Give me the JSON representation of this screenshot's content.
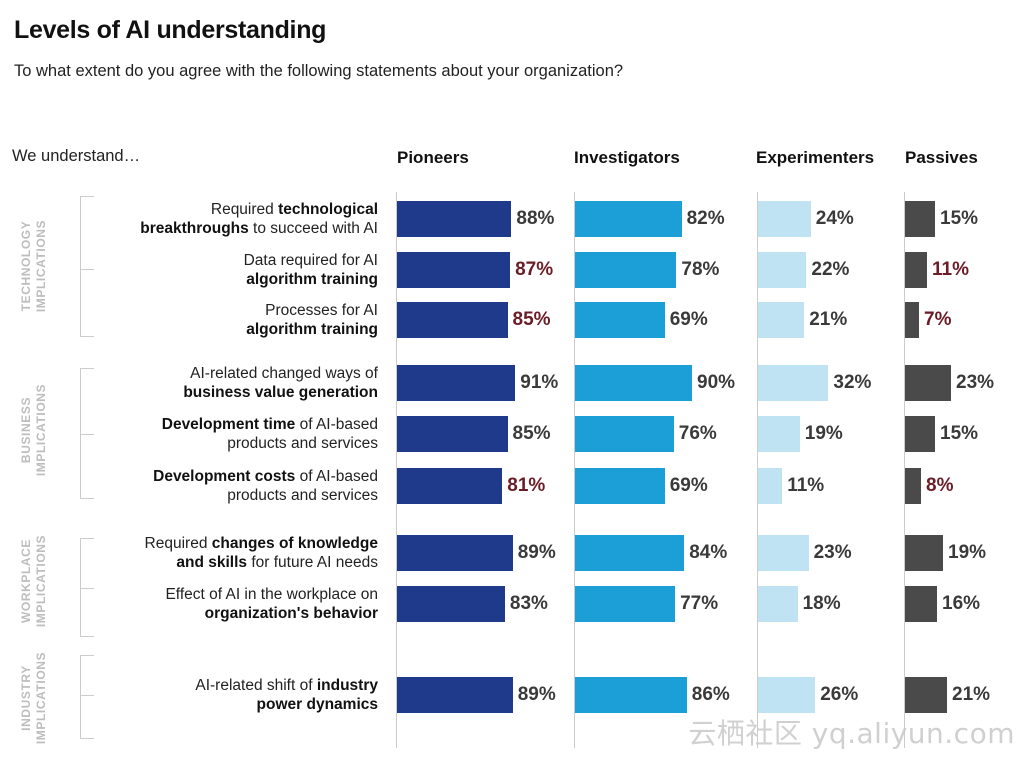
{
  "title": "Levels of AI understanding",
  "subtitle": "To what extent do you agree with the following statements about your organization?",
  "row_header": "We understand…",
  "watermark": "云栖社区 yq.aliyun.com",
  "colors": {
    "Pioneers": "#1f3a8a",
    "Investigators": "#1b9fd6",
    "Experimenters": "#bfe3f3",
    "Passives": "#4a4a4a",
    "highlight_value": "#6b1d27"
  },
  "groups": [
    {
      "label_line1": "TECHNOLOGY",
      "label_line2": "IMPLICATIONS"
    },
    {
      "label_line1": "BUSINESS",
      "label_line2": "IMPLICATIONS"
    },
    {
      "label_line1": "WORKPLACE",
      "label_line2": "IMPLICATIONS"
    },
    {
      "label_line1": "INDUSTRY",
      "label_line2": "IMPLICATIONS"
    }
  ],
  "chart_data": {
    "type": "bar",
    "orientation": "horizontal",
    "title": "Levels of AI understanding",
    "subtitle": "To what extent do you agree with the following statements about your organization?",
    "value_format": "percent",
    "series_names": [
      "Pioneers",
      "Investigators",
      "Experimenters",
      "Passives"
    ],
    "rows": [
      {
        "group": "TECHNOLOGY IMPLICATIONS",
        "label": [
          {
            "t": "Required ",
            "b": false
          },
          {
            "t": "technological",
            "b": true
          },
          {
            "t": "\n",
            "b": false
          },
          {
            "t": "breakthroughs",
            "b": true
          },
          {
            "t": " to succeed with AI",
            "b": false
          }
        ],
        "values": [
          88,
          82,
          24,
          15
        ],
        "labels": [
          "88%",
          "82%",
          "24%",
          "15%"
        ],
        "highlight": [
          false,
          false,
          false,
          false
        ]
      },
      {
        "group": "TECHNOLOGY IMPLICATIONS",
        "label": [
          {
            "t": "Data required for AI",
            "b": false
          },
          {
            "t": "\n",
            "b": false
          },
          {
            "t": "algorithm training",
            "b": true
          }
        ],
        "values": [
          87,
          78,
          22,
          11
        ],
        "labels": [
          "87%",
          "78%",
          "22%",
          "11%"
        ],
        "highlight": [
          true,
          false,
          false,
          true
        ]
      },
      {
        "group": "TECHNOLOGY IMPLICATIONS",
        "label": [
          {
            "t": "Processes for AI",
            "b": false
          },
          {
            "t": "\n",
            "b": false
          },
          {
            "t": "algorithm training",
            "b": true
          }
        ],
        "values": [
          85,
          69,
          21,
          7
        ],
        "labels": [
          "85%",
          "69%",
          "21%",
          "7%"
        ],
        "highlight": [
          true,
          false,
          false,
          true
        ]
      },
      {
        "group": "BUSINESS IMPLICATIONS",
        "label": [
          {
            "t": "AI-related changed ways of",
            "b": false
          },
          {
            "t": "\n",
            "b": false
          },
          {
            "t": "business value generation",
            "b": true
          }
        ],
        "values": [
          91,
          90,
          32,
          23
        ],
        "labels": [
          "91%",
          "90%",
          "32%",
          "23%"
        ],
        "highlight": [
          false,
          false,
          false,
          false
        ]
      },
      {
        "group": "BUSINESS IMPLICATIONS",
        "label": [
          {
            "t": "Development time",
            "b": true
          },
          {
            "t": " of AI-based",
            "b": false
          },
          {
            "t": "\n",
            "b": false
          },
          {
            "t": "products and services",
            "b": false
          }
        ],
        "values": [
          85,
          76,
          19,
          15
        ],
        "labels": [
          "85%",
          "76%",
          "19%",
          "15%"
        ],
        "highlight": [
          false,
          false,
          false,
          false
        ]
      },
      {
        "group": "BUSINESS IMPLICATIONS",
        "label": [
          {
            "t": "Development costs",
            "b": true
          },
          {
            "t": " of AI-based",
            "b": false
          },
          {
            "t": "\n",
            "b": false
          },
          {
            "t": "products and services",
            "b": false
          }
        ],
        "values": [
          81,
          69,
          11,
          8
        ],
        "labels": [
          "81%",
          "69%",
          "11%",
          "8%"
        ],
        "highlight": [
          true,
          false,
          false,
          true
        ]
      },
      {
        "group": "WORKPLACE IMPLICATIONS",
        "label": [
          {
            "t": "Required ",
            "b": false
          },
          {
            "t": "changes of knowledge",
            "b": true
          },
          {
            "t": "\n",
            "b": false
          },
          {
            "t": "and skills",
            "b": true
          },
          {
            "t": " for future AI needs",
            "b": false
          }
        ],
        "values": [
          89,
          84,
          23,
          19
        ],
        "labels": [
          "89%",
          "84%",
          "23%",
          "19%"
        ],
        "highlight": [
          false,
          false,
          false,
          false
        ]
      },
      {
        "group": "WORKPLACE IMPLICATIONS",
        "label": [
          {
            "t": "Effect of AI in the workplace on",
            "b": false
          },
          {
            "t": "\n",
            "b": false
          },
          {
            "t": "organization's behavior",
            "b": true
          }
        ],
        "values": [
          83,
          77,
          18,
          16
        ],
        "labels": [
          "83%",
          "77%",
          "18%",
          "16%"
        ],
        "highlight": [
          false,
          false,
          false,
          false
        ]
      },
      {
        "group": "INDUSTRY IMPLICATIONS",
        "label": [
          {
            "t": "AI-related shift of ",
            "b": false
          },
          {
            "t": "industry",
            "b": true
          },
          {
            "t": "\n",
            "b": false
          },
          {
            "t": "power dynamics",
            "b": true
          }
        ],
        "values": [
          89,
          86,
          26,
          21
        ],
        "labels": [
          "89%",
          "86%",
          "26%",
          "21%"
        ],
        "highlight": [
          false,
          false,
          false,
          false
        ]
      }
    ]
  }
}
